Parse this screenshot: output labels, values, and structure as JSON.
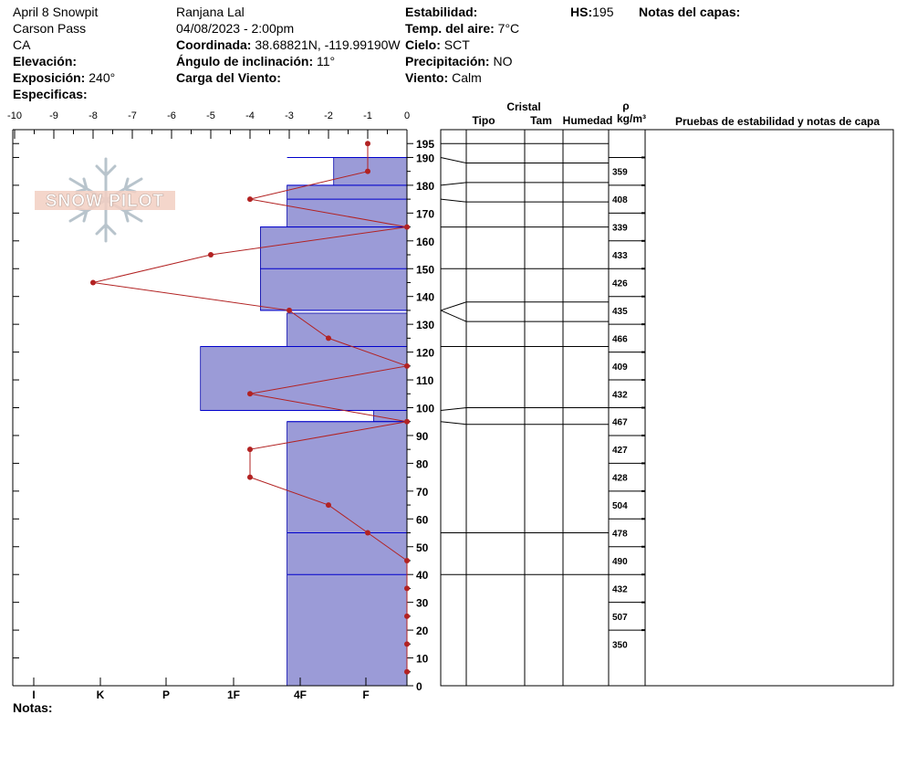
{
  "header": {
    "pit_name": "April 8 Snowpit",
    "location": "Carson Pass",
    "state": "CA",
    "elevation_label": "Elevación:",
    "elevation_value": "",
    "aspect_label": "Exposición:",
    "aspect_value": "240°",
    "specifics_label": "Especificas:",
    "observer": "Ranjana Lal",
    "datetime": "04/08/2023 - 2:00pm",
    "coord_label": "Coordinada:",
    "coord_value": "38.68821N, -119.99190W",
    "slope_label": "Ángulo de inclinación:",
    "slope_value": "11°",
    "wind_load_label": "Carga del Viento:",
    "wind_load_value": "",
    "stability_label": "Estabilidad:",
    "stability_value": "",
    "air_temp_label": "Temp. del aire:",
    "air_temp_value": "7°C",
    "sky_label": "Cielo:",
    "sky_value": "SCT",
    "precip_label": "Precipitación:",
    "precip_value": "NO",
    "wind_label": "Viento:",
    "wind_value": "Calm",
    "hs_label": "HS:",
    "hs_value": "195",
    "layer_notes_label": "Notas del capas:"
  },
  "footer": {
    "notes_label": "Notas:"
  },
  "logo_text": "SNOW PILOT",
  "table": {
    "crystal_label": "Cristal",
    "type_label": "Tipo",
    "size_label": "Tam",
    "moisture_label": "Humedad",
    "density_symbol": "ρ",
    "density_unit": "kg/m³",
    "stability_notes_label": "Pruebas de estabilidad y notas de capa"
  },
  "colors": {
    "hardness_fill": "#9b9bd7",
    "layer_line": "#0000cc",
    "temp_line": "#b22222",
    "temp_point": "#b22222"
  },
  "chart_data": {
    "type": "snow-profile",
    "temperature_axis": {
      "ticks": [
        "-10",
        "-9",
        "-8",
        "-7",
        "-6",
        "-5",
        "-4",
        "-3",
        "-2",
        "-1",
        "0"
      ],
      "range": [
        -10,
        0
      ]
    },
    "hardness_axis": {
      "ticks": [
        "I",
        "K",
        "P",
        "1F",
        "4F",
        "F"
      ]
    },
    "height_axis": {
      "ticks": [
        "195",
        "190",
        "180",
        "170",
        "160",
        "150",
        "140",
        "130",
        "120",
        "110",
        "100",
        "90",
        "80",
        "70",
        "60",
        "50",
        "40",
        "30",
        "20",
        "10",
        "0"
      ],
      "range": [
        0,
        195
      ]
    },
    "hardness_layers": [
      {
        "top": 195,
        "bottom": 190,
        "hardness": 0
      },
      {
        "top": 190,
        "bottom": 180,
        "hardness": 1.1
      },
      {
        "top": 180,
        "bottom": 165,
        "hardness": 1.8
      },
      {
        "top": 165,
        "bottom": 135,
        "hardness": 2.2
      },
      {
        "top": 134,
        "bottom": 122,
        "hardness": 1.8
      },
      {
        "top": 122,
        "bottom": 99,
        "hardness": 3.1
      },
      {
        "top": 99,
        "bottom": 95,
        "hardness": 0.5
      },
      {
        "top": 95,
        "bottom": 0,
        "hardness": 1.8
      }
    ],
    "layer_lines": [
      190,
      180,
      175,
      165,
      150,
      135,
      122,
      99,
      95,
      55,
      40
    ],
    "temperature_profile": [
      {
        "h": 195,
        "t": -1
      },
      {
        "h": 185,
        "t": -1
      },
      {
        "h": 175,
        "t": -4
      },
      {
        "h": 165,
        "t": 0
      },
      {
        "h": 155,
        "t": -5
      },
      {
        "h": 145,
        "t": -8
      },
      {
        "h": 135,
        "t": -3
      },
      {
        "h": 125,
        "t": -2
      },
      {
        "h": 115,
        "t": 0
      },
      {
        "h": 105,
        "t": -4
      },
      {
        "h": 95,
        "t": 0
      },
      {
        "h": 85,
        "t": -4
      },
      {
        "h": 75,
        "t": -4
      },
      {
        "h": 65,
        "t": -2
      },
      {
        "h": 55,
        "t": -1
      },
      {
        "h": 45,
        "t": 0
      },
      {
        "h": 35,
        "t": 0
      },
      {
        "h": 25,
        "t": 0
      },
      {
        "h": 15,
        "t": 0
      },
      {
        "h": 5,
        "t": 0
      }
    ],
    "density_boundaries": [
      190,
      180,
      170,
      160,
      150,
      140,
      130,
      120,
      110,
      100,
      90,
      80,
      70,
      60,
      50,
      40,
      30,
      20
    ],
    "densities": [
      {
        "h": 185,
        "value": "359"
      },
      {
        "h": 175,
        "value": "408"
      },
      {
        "h": 165,
        "value": "339"
      },
      {
        "h": 155,
        "value": "433"
      },
      {
        "h": 145,
        "value": "426"
      },
      {
        "h": 135,
        "value": "435"
      },
      {
        "h": 125,
        "value": "466"
      },
      {
        "h": 115,
        "value": "409"
      },
      {
        "h": 105,
        "value": "432"
      },
      {
        "h": 95,
        "value": "467"
      },
      {
        "h": 85,
        "value": "427"
      },
      {
        "h": 75,
        "value": "428"
      },
      {
        "h": 65,
        "value": "504"
      },
      {
        "h": 55,
        "value": "478"
      },
      {
        "h": 45,
        "value": "490"
      },
      {
        "h": 35,
        "value": "432"
      },
      {
        "h": 25,
        "value": "507"
      },
      {
        "h": 15,
        "value": "350"
      }
    ],
    "table_rows": [
      {
        "left": 195,
        "right": 195
      },
      {
        "left": 190,
        "right": 188
      },
      {
        "left": 180,
        "right": 181
      },
      {
        "left": 175,
        "right": 174
      },
      {
        "left": 165,
        "right": 165
      },
      {
        "left": 150,
        "right": 150
      },
      {
        "left": 135,
        "right": 138
      },
      {
        "left": 135,
        "right": 131
      },
      {
        "left": 122,
        "right": 122
      },
      {
        "left": 99,
        "right": 100
      },
      {
        "left": 95,
        "right": 94
      },
      {
        "left": 55,
        "right": 55
      },
      {
        "left": 40,
        "right": 40
      }
    ]
  }
}
